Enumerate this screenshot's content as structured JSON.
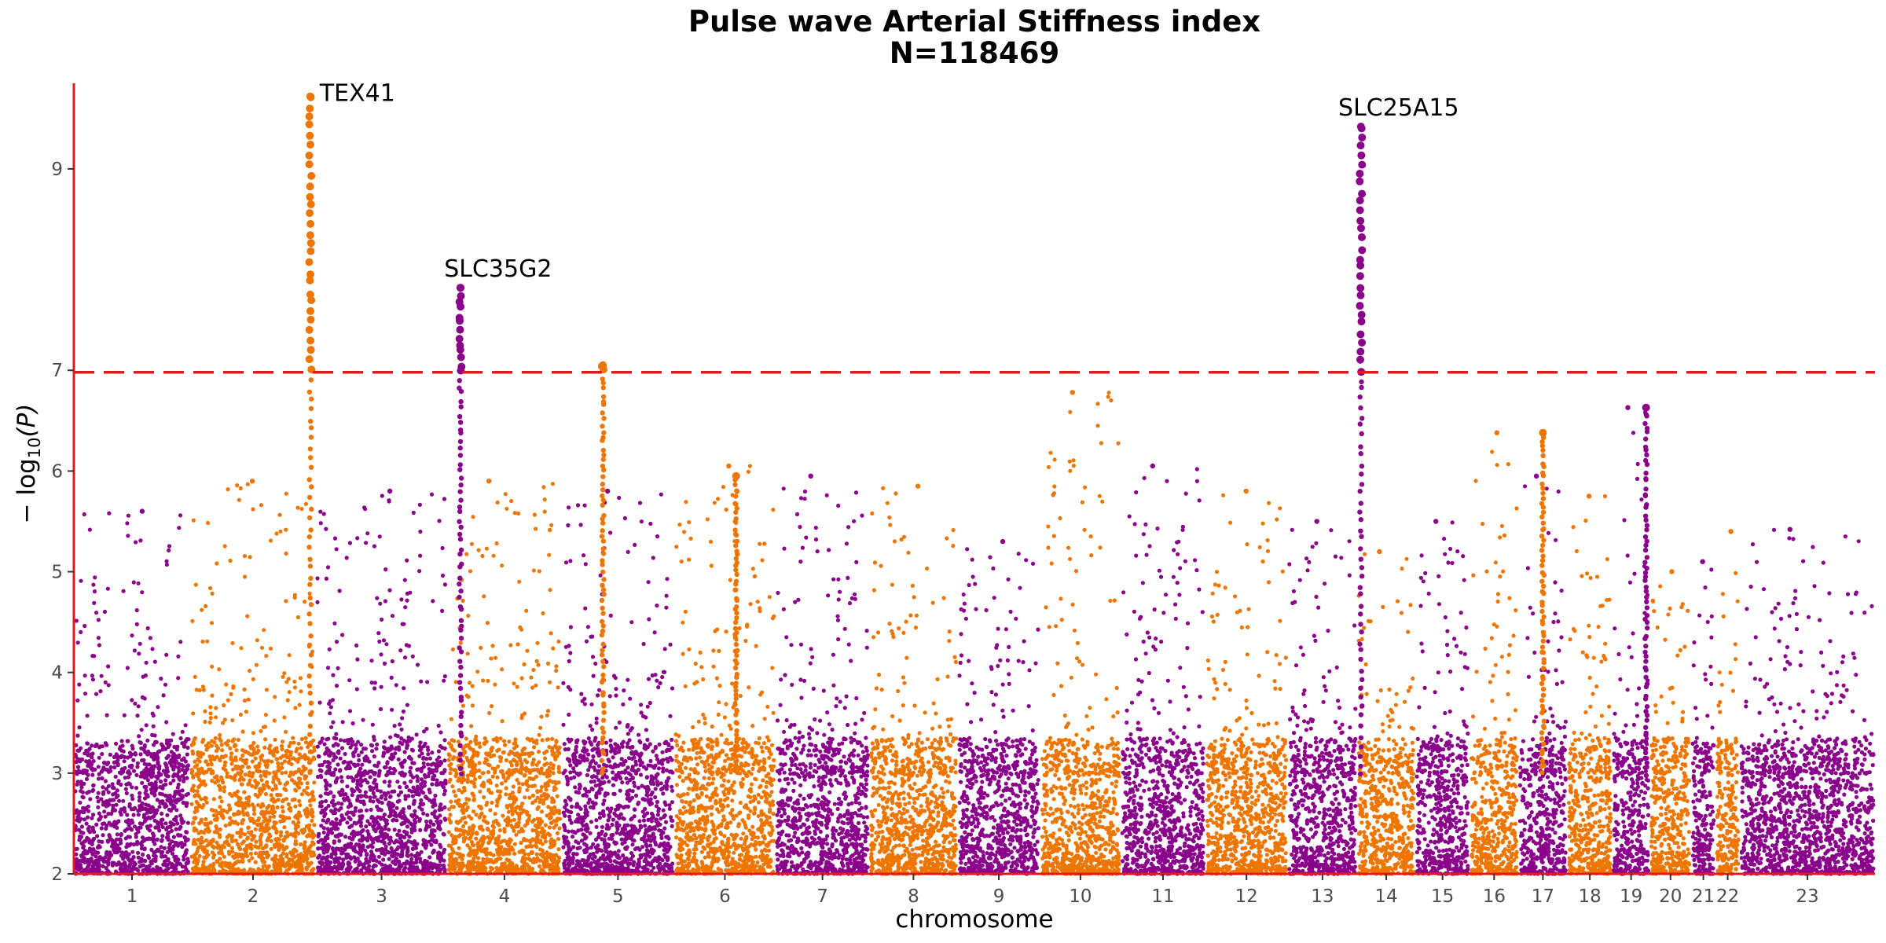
{
  "chart_data": {
    "type": "scatter",
    "title": "Pulse wave Arterial Stiffness index",
    "subtitle": "N=118469",
    "xlabel": "chromosome",
    "ylabel_parts": {
      "prefix": "− log",
      "sub": "10",
      "suffix": "(P)"
    },
    "ylim": [
      2,
      9.85
    ],
    "yticks": [
      2,
      3,
      4,
      5,
      6,
      7,
      9
    ],
    "ytick_labels": [
      "2",
      "3",
      "4",
      "5",
      "6",
      "7",
      "9"
    ],
    "threshold": 6.98,
    "colors": {
      "odd": "#8B008B",
      "even": "#EE7600",
      "threshold": "#E31A1C",
      "axis": "#E31A1C"
    },
    "chromosomes": [
      {
        "label": "1",
        "start": 0.0,
        "end": 6.2,
        "peak": 5.6
      },
      {
        "label": "2",
        "start": 6.2,
        "end": 12.9,
        "peak": 5.9
      },
      {
        "label": "3",
        "start": 12.9,
        "end": 19.9,
        "peak": 5.8
      },
      {
        "label": "4",
        "start": 19.9,
        "end": 26.0,
        "peak": 5.9
      },
      {
        "label": "5",
        "start": 26.0,
        "end": 32.0,
        "peak": 5.8
      },
      {
        "label": "6",
        "start": 32.0,
        "end": 37.4,
        "peak": 6.05
      },
      {
        "label": "7",
        "start": 37.4,
        "end": 42.4,
        "peak": 5.95
      },
      {
        "label": "8",
        "start": 42.4,
        "end": 47.1,
        "peak": 5.85
      },
      {
        "label": "9",
        "start": 47.1,
        "end": 51.5,
        "peak": 5.3
      },
      {
        "label": "10",
        "start": 51.5,
        "end": 55.8,
        "peak": 6.78
      },
      {
        "label": "11",
        "start": 55.8,
        "end": 60.3,
        "peak": 6.05
      },
      {
        "label": "12",
        "start": 60.3,
        "end": 64.7,
        "peak": 5.8
      },
      {
        "label": "13",
        "start": 64.7,
        "end": 68.4,
        "peak": 5.5
      },
      {
        "label": "14",
        "start": 68.4,
        "end": 71.5,
        "peak": 5.2
      },
      {
        "label": "15",
        "start": 71.5,
        "end": 74.4,
        "peak": 5.5
      },
      {
        "label": "16",
        "start": 74.4,
        "end": 77.0,
        "peak": 6.38
      },
      {
        "label": "17",
        "start": 77.0,
        "end": 79.6,
        "peak": 5.95
      },
      {
        "label": "18",
        "start": 79.6,
        "end": 82.0,
        "peak": 5.75
      },
      {
        "label": "19",
        "start": 82.0,
        "end": 84.0,
        "peak": 6.63
      },
      {
        "label": "20",
        "start": 84.0,
        "end": 86.2,
        "peak": 5.0
      },
      {
        "label": "21",
        "start": 86.2,
        "end": 87.5,
        "peak": 5.1
      },
      {
        "label": "22",
        "start": 87.5,
        "end": 88.8,
        "peak": 5.4
      },
      {
        "label": "23",
        "start": 88.8,
        "end": 96.0,
        "peak": 5.42
      }
    ],
    "peaks": [
      {
        "chrom": "2",
        "pos": 12.6,
        "top": 9.72
      },
      {
        "chrom": "3",
        "pos": 20.6,
        "top": 7.82
      },
      {
        "chrom": "4",
        "pos": 28.2,
        "top": 7.05
      },
      {
        "chrom": "6",
        "pos": 35.3,
        "top": 5.95
      },
      {
        "chrom": "13",
        "pos": 68.6,
        "top": 9.42
      },
      {
        "chrom": "16",
        "pos": 78.3,
        "top": 6.38
      },
      {
        "chrom": "19",
        "pos": 83.8,
        "top": 6.63
      }
    ],
    "annotations": [
      {
        "text": "TEX41",
        "x": 12.6,
        "y": 9.72
      },
      {
        "text": "SLC35G2",
        "x": 20.6,
        "y": 7.82
      },
      {
        "text": "SLC25A15",
        "x": 68.6,
        "y": 9.42
      }
    ]
  }
}
